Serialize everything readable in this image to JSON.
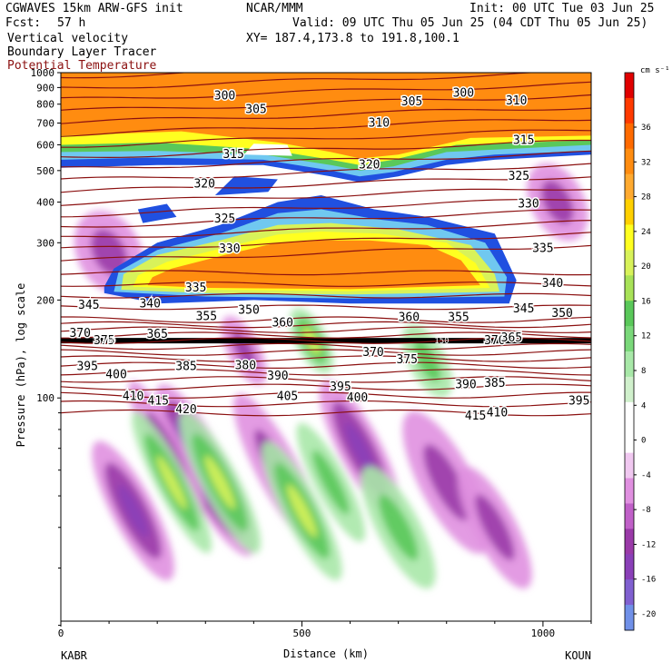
{
  "header": {
    "model": "CGWAVES 15km ARW-GFS init",
    "org": "NCAR/MMM",
    "init": "Init: 00 UTC Tue 03 Jun 25",
    "fcst_label": "Fcst:",
    "fcst_value": "57 h",
    "valid": "Valid: 09 UTC Thu 05 Jun 25 (04 CDT Thu 05 Jun 25)",
    "field1": "Vertical velocity",
    "field2": "Boundary Layer Tracer",
    "field3": "Potential Temperature",
    "xy": "XY= 187.4,173.8 to 191.8,100.1"
  },
  "colors": {
    "theta_contour": "#8b1010",
    "tropopause_line": "#000000"
  },
  "chart_data": {
    "type": "heatmap",
    "xlabel": "Distance (km)",
    "ylabel": "Pressure (hPa), log scale",
    "xlim": [
      0,
      1100
    ],
    "x_ticks": [
      0,
      500,
      1000
    ],
    "ylim": [
      1000,
      20
    ],
    "y_scale": "log",
    "y_ticks": [
      100,
      200,
      300,
      400,
      500,
      600,
      700,
      800,
      900,
      1000
    ],
    "endpoints": {
      "left": "KABR",
      "right": "KOUN"
    },
    "colorbar": {
      "unit": "cm s⁻¹",
      "ticks": [
        36,
        32,
        28,
        24,
        20,
        16,
        12,
        8,
        4,
        0,
        -4,
        -8,
        -12,
        -16,
        -20
      ],
      "colors": [
        "#e00000",
        "#ff3a00",
        "#ff6a00",
        "#ff8c10",
        "#ffaa30",
        "#ffd000",
        "#ffff20",
        "#d8f25a",
        "#a8e258",
        "#5ac85a",
        "#7ad87a",
        "#a8e8a8",
        "#d0f0cc",
        "#ffffff",
        "#ffffff",
        "#f0c8f0",
        "#e090e0",
        "#c060c8",
        "#9a3aa8",
        "#8a40b8",
        "#8060d0",
        "#7090e8"
      ]
    },
    "tropopause_label": "150",
    "theta_labels": [
      {
        "text": "415",
        "x": 202,
        "p": 98
      },
      {
        "text": "420",
        "x": 260,
        "p": 92
      },
      {
        "text": "410",
        "x": 150,
        "p": 101
      },
      {
        "text": "405",
        "x": 470,
        "p": 101
      },
      {
        "text": "400",
        "x": 615,
        "p": 100
      },
      {
        "text": "415",
        "x": 860,
        "p": 88
      },
      {
        "text": "410",
        "x": 905,
        "p": 90
      },
      {
        "text": "395",
        "x": 1075,
        "p": 98
      },
      {
        "text": "395",
        "x": 55,
        "p": 125
      },
      {
        "text": "400",
        "x": 115,
        "p": 118
      },
      {
        "text": "385",
        "x": 260,
        "p": 125
      },
      {
        "text": "380",
        "x": 383,
        "p": 126
      },
      {
        "text": "390",
        "x": 450,
        "p": 117
      },
      {
        "text": "395",
        "x": 580,
        "p": 108
      },
      {
        "text": "390",
        "x": 840,
        "p": 110
      },
      {
        "text": "385",
        "x": 900,
        "p": 111
      },
      {
        "text": "370",
        "x": 648,
        "p": 138
      },
      {
        "text": "375",
        "x": 718,
        "p": 131
      },
      {
        "text": "370",
        "x": 40,
        "p": 158
      },
      {
        "text": "375",
        "x": 90,
        "p": 150
      },
      {
        "text": "365",
        "x": 200,
        "p": 157
      },
      {
        "text": "370",
        "x": 900,
        "p": 150
      },
      {
        "text": "365",
        "x": 935,
        "p": 153
      },
      {
        "text": "355",
        "x": 302,
        "p": 178
      },
      {
        "text": "360",
        "x": 460,
        "p": 170
      },
      {
        "text": "360",
        "x": 722,
        "p": 177
      },
      {
        "text": "355",
        "x": 825,
        "p": 177
      },
      {
        "text": "350",
        "x": 390,
        "p": 186
      },
      {
        "text": "345",
        "x": 58,
        "p": 193
      },
      {
        "text": "340",
        "x": 185,
        "p": 195
      },
      {
        "text": "345",
        "x": 960,
        "p": 188
      },
      {
        "text": "350",
        "x": 1040,
        "p": 182
      },
      {
        "text": "335",
        "x": 280,
        "p": 218
      },
      {
        "text": "340",
        "x": 1020,
        "p": 225
      },
      {
        "text": "330",
        "x": 350,
        "p": 287
      },
      {
        "text": "335",
        "x": 1000,
        "p": 288
      },
      {
        "text": "325",
        "x": 340,
        "p": 355
      },
      {
        "text": "330",
        "x": 970,
        "p": 395
      },
      {
        "text": "320",
        "x": 298,
        "p": 455
      },
      {
        "text": "320",
        "x": 640,
        "p": 520
      },
      {
        "text": "325",
        "x": 950,
        "p": 480
      },
      {
        "text": "315",
        "x": 358,
        "p": 560
      },
      {
        "text": "315",
        "x": 960,
        "p": 620
      },
      {
        "text": "310",
        "x": 660,
        "p": 700
      },
      {
        "text": "305",
        "x": 405,
        "p": 770
      },
      {
        "text": "305",
        "x": 728,
        "p": 815
      },
      {
        "text": "310",
        "x": 945,
        "p": 820
      },
      {
        "text": "300",
        "x": 340,
        "p": 850
      },
      {
        "text": "300",
        "x": 835,
        "p": 865
      }
    ],
    "vv_features": [
      {
        "x": 300,
        "p": 60,
        "v": -18,
        "sx": 45,
        "sp": 35
      },
      {
        "x": 150,
        "p": 45,
        "v": -10,
        "sx": 40,
        "sp": 20
      },
      {
        "x": 220,
        "p": 70,
        "v": -8,
        "sx": 30,
        "sp": 30
      },
      {
        "x": 330,
        "p": 55,
        "v": 10,
        "sx": 35,
        "sp": 25
      },
      {
        "x": 450,
        "p": 60,
        "v": -8,
        "sx": 40,
        "sp": 30
      },
      {
        "x": 500,
        "p": 45,
        "v": 10,
        "sx": 35,
        "sp": 20
      },
      {
        "x": 620,
        "p": 70,
        "v": -10,
        "sx": 40,
        "sp": 30
      },
      {
        "x": 700,
        "p": 40,
        "v": 6,
        "sx": 40,
        "sp": 15
      },
      {
        "x": 800,
        "p": 55,
        "v": -6,
        "sx": 50,
        "sp": 25
      },
      {
        "x": 900,
        "p": 40,
        "v": -8,
        "sx": 40,
        "sp": 15
      },
      {
        "x": 230,
        "p": 55,
        "v": 10,
        "sx": 30,
        "sp": 25
      },
      {
        "x": 560,
        "p": 55,
        "v": 8,
        "sx": 30,
        "sp": 20
      },
      {
        "x": 380,
        "p": 140,
        "v": -8,
        "sx": 30,
        "sp": 25
      },
      {
        "x": 520,
        "p": 150,
        "v": 10,
        "sx": 30,
        "sp": 25
      },
      {
        "x": 760,
        "p": 130,
        "v": 6,
        "sx": 35,
        "sp": 25
      },
      {
        "x": 100,
        "p": 280,
        "v": -8,
        "sx": 60,
        "sp": 60
      },
      {
        "x": 1030,
        "p": 400,
        "v": -6,
        "sx": 50,
        "sp": 80
      }
    ]
  }
}
